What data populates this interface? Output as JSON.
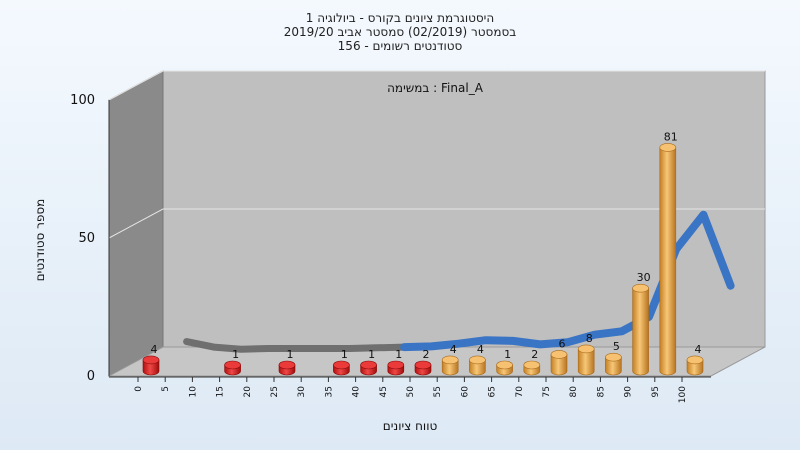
{
  "chart_data": {
    "type": "bar",
    "title_lines": [
      "היסטוגרמת ציונים בקורס - ביולוגיה 1",
      "בסמסטר  (02/2019)  סמסטר אביב 2019/20",
      "סטודנטים רשומים - 156"
    ],
    "assignment_label": "במשימה : Final_A",
    "xlabel": "טווח ציונים",
    "ylabel": "מספר סטודנטים",
    "ylim": [
      0,
      100
    ],
    "yticks": [
      0,
      50,
      100
    ],
    "xticks": [
      "0",
      "5",
      "10",
      "15",
      "20",
      "25",
      "30",
      "35",
      "40",
      "45",
      "50",
      "55",
      "60",
      "65",
      "70",
      "75",
      "80",
      "85",
      "90",
      "95",
      "100"
    ],
    "bin_starts": [
      0,
      15,
      25,
      35,
      40,
      45,
      50,
      55,
      60,
      65,
      70,
      75,
      80,
      85,
      90,
      95,
      100
    ],
    "values": [
      4,
      1,
      1,
      1,
      1,
      1,
      2,
      4,
      4,
      1,
      2,
      6,
      8,
      5,
      30,
      81,
      4
    ],
    "fail_threshold": 55,
    "colors": {
      "fail": "#dd2020",
      "pass": "#e9a53e",
      "curve": "#3a74c4",
      "curve_muted": "#6f6f6f",
      "back_wall": "#bfbfbf",
      "side_wall": "#8a8a8a",
      "floor": "#c6c6c6"
    }
  }
}
